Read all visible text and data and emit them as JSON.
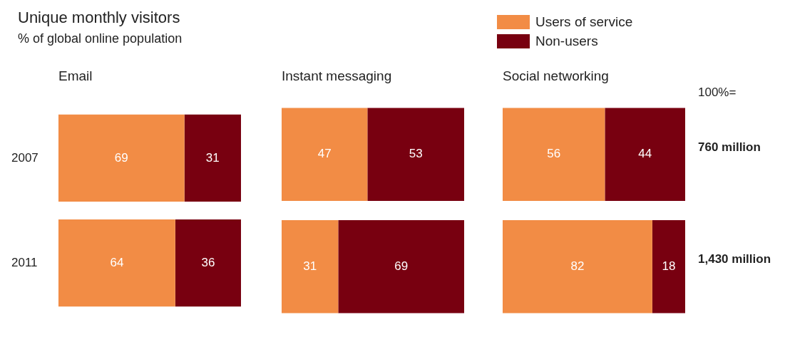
{
  "chart_data": [
    {
      "type": "other",
      "title": "Unique monthly visitors",
      "subtitle": "% of global online population"
    },
    {
      "type": "bar",
      "title": "Email",
      "orientation": "horizontal",
      "stacked": true,
      "categories": [
        "2007",
        "2011"
      ],
      "xlim": [
        0,
        100
      ],
      "tick_labels": "y",
      "data_labels": true,
      "series": [
        {
          "color": "#f28c45",
          "values": [
            69,
            64
          ]
        },
        {
          "color": "#780010",
          "values": [
            31,
            36
          ]
        }
      ]
    },
    {
      "type": "bar",
      "title": "Instant messaging",
      "orientation": "horizontal",
      "stacked": true,
      "categories": [
        "2007",
        "2011"
      ],
      "xlim": [
        0,
        100
      ],
      "tick_labels": false,
      "data_labels": true,
      "series": [
        {
          "color": "#f28c45",
          "values": [
            47,
            31
          ]
        },
        {
          "color": "#780010",
          "values": [
            53,
            69
          ]
        }
      ]
    },
    {
      "type": "bar",
      "title": "Social networking",
      "orientation": "horizontal",
      "stacked": true,
      "categories": [
        "2007",
        "2011"
      ],
      "xlim": [
        0,
        100
      ],
      "tick_labels": false,
      "data_labels": true,
      "legend": "top left",
      "series": [
        {
          "name": "Users of service",
          "color": "#f28c45",
          "values": [
            56,
            82
          ]
        },
        {
          "name": "Non-users",
          "color": "#780010",
          "values": [
            44,
            18
          ]
        }
      ],
      "annotations": [
        "100%=",
        "760 million",
        "1,430 million"
      ]
    }
  ]
}
